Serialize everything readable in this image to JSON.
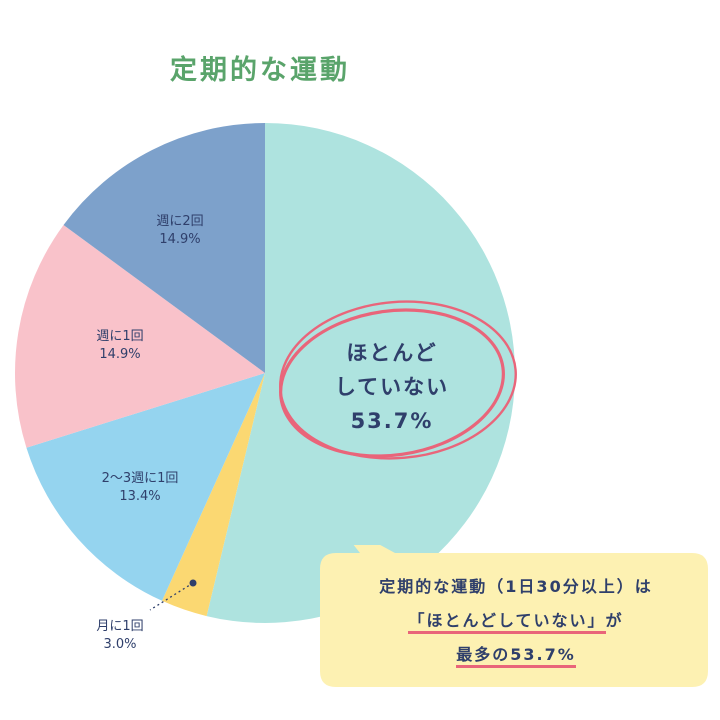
{
  "chart_data": {
    "type": "pie",
    "title": "定期的な運動",
    "slices": [
      {
        "label": "ほとんどしていない",
        "value": 53.7,
        "value_text": "53.7%",
        "label_lines": [
          "ほとんど",
          "していない"
        ],
        "color": "#aee3df"
      },
      {
        "label": "月に1回",
        "value": 3.0,
        "value_text": "3.0%",
        "color": "#fbd872"
      },
      {
        "label": "2〜3週に1回",
        "value": 13.4,
        "value_text": "13.4%",
        "color": "#95d4ef"
      },
      {
        "label": "週に1回",
        "value": 14.9,
        "value_text": "14.9%",
        "color": "#f9c2ca"
      },
      {
        "label": "週に2回",
        "value": 14.9,
        "value_text": "14.9%",
        "color": "#7da1cb"
      }
    ],
    "start": "12 o'clock",
    "direction": "clockwise",
    "highlight_color": "#e9657a"
  },
  "callout": {
    "line1": "定期的な運動（1日30分以上）は",
    "line2_pre": "「ほとんどしていない」",
    "line2_post": "が",
    "line3": "最多の53.7%",
    "bg_color": "#fdf1b2"
  }
}
